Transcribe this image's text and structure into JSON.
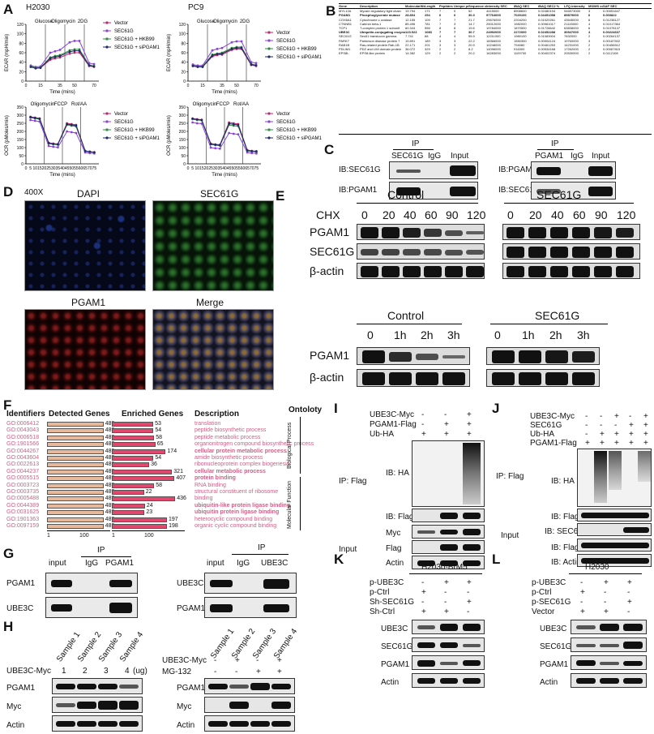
{
  "panel_labels": {
    "A": "A",
    "B": "B",
    "C": "C",
    "D": "D",
    "E": "E",
    "F": "F",
    "G": "G",
    "H": "H",
    "I": "I",
    "J": "J",
    "K": "K",
    "L": "L"
  },
  "panel_a": {
    "ecar_titles": [
      "H2030",
      "PC9"
    ],
    "ecar_ylabel": "ECAR (mpH/min)",
    "ocr_ylabel": "OCR (pMoles/min)",
    "xlabel": "Time (mins)",
    "ecar_injections": [
      "Glucose",
      "Oligomycin",
      "2DG"
    ],
    "ocr_injections": [
      "Oligomycin",
      "FCCP",
      "Rot/AA"
    ],
    "legend": [
      "Vector",
      "SEC61G",
      "SEC61G + HKB99",
      "SEC61G + siPGAM1"
    ],
    "legend_colors": [
      "#c0266d",
      "#8e3fe0",
      "#2e8b3e",
      "#1f2a6b"
    ],
    "ecar_xticks": [
      "0",
      "15",
      "35",
      "50",
      "70"
    ],
    "ecar_yticks": [
      "0",
      "20",
      "40",
      "60",
      "80",
      "100",
      "120"
    ],
    "ocr_xticks": [
      "0",
      "5",
      "10",
      "15",
      "20",
      "25",
      "30",
      "35",
      "40",
      "45",
      "50",
      "55",
      "60",
      "65",
      "70",
      "75"
    ],
    "ocr_yticks": [
      "0",
      "50",
      "100",
      "150",
      "200",
      "250",
      "300",
      "350"
    ]
  },
  "chart_data": [
    {
      "type": "line",
      "title": "H2030",
      "xlabel": "Time (mins)",
      "ylabel": "ECAR (mpH/min)",
      "ylim": [
        0,
        120
      ],
      "x": [
        5,
        10,
        15,
        25,
        30,
        35,
        45,
        50,
        55,
        65,
        70
      ],
      "series": [
        {
          "name": "Vector",
          "values": [
            30,
            27,
            28,
            45,
            48,
            50,
            58,
            60,
            60,
            32,
            30
          ]
        },
        {
          "name": "SEC61G",
          "values": [
            33,
            30,
            31,
            60,
            63,
            66,
            82,
            85,
            85,
            38,
            36
          ]
        },
        {
          "name": "SEC61G + HKB99",
          "values": [
            31,
            28,
            29,
            50,
            53,
            55,
            65,
            67,
            67,
            34,
            32
          ]
        },
        {
          "name": "SEC61G + siPGAM1",
          "values": [
            30,
            27,
            28,
            48,
            51,
            53,
            62,
            64,
            64,
            33,
            31
          ]
        }
      ]
    },
    {
      "type": "line",
      "title": "PC9",
      "xlabel": "Time (mins)",
      "ylabel": "ECAR (mpH/min)",
      "ylim": [
        0,
        120
      ],
      "x": [
        5,
        10,
        15,
        25,
        30,
        35,
        45,
        50,
        55,
        65,
        70
      ],
      "series": [
        {
          "name": "Vector",
          "values": [
            32,
            30,
            30,
            52,
            55,
            56,
            66,
            68,
            68,
            34,
            32
          ]
        },
        {
          "name": "SEC61G",
          "values": [
            35,
            33,
            33,
            65,
            68,
            70,
            82,
            84,
            84,
            40,
            38
          ]
        },
        {
          "name": "SEC61G + HKB99",
          "values": [
            33,
            31,
            31,
            56,
            58,
            60,
            70,
            72,
            72,
            36,
            34
          ]
        },
        {
          "name": "SEC61G + siPGAM1",
          "values": [
            32,
            30,
            30,
            54,
            57,
            58,
            68,
            70,
            70,
            35,
            33
          ]
        }
      ]
    },
    {
      "type": "line",
      "title": "",
      "xlabel": "Time (mins)",
      "ylabel": "OCR (pMoles/min)",
      "ylim": [
        0,
        350
      ],
      "x": [
        5,
        10,
        15,
        25,
        30,
        35,
        45,
        50,
        55,
        65,
        70,
        75
      ],
      "series": [
        {
          "name": "Vector",
          "values": [
            290,
            285,
            280,
            130,
            125,
            122,
            250,
            245,
            240,
            80,
            75,
            72
          ]
        },
        {
          "name": "SEC61G",
          "values": [
            270,
            265,
            260,
            110,
            105,
            102,
            200,
            195,
            190,
            70,
            66,
            64
          ]
        },
        {
          "name": "SEC61G + HKB99",
          "values": [
            285,
            280,
            275,
            125,
            120,
            118,
            240,
            235,
            230,
            78,
            74,
            70
          ]
        },
        {
          "name": "SEC61G + siPGAM1",
          "values": [
            288,
            283,
            278,
            128,
            123,
            120,
            245,
            240,
            236,
            79,
            75,
            71
          ]
        }
      ]
    },
    {
      "type": "line",
      "title": "",
      "xlabel": "Time (mins)",
      "ylabel": "OCR (pMoles/min)",
      "ylim": [
        0,
        350
      ],
      "x": [
        5,
        10,
        15,
        25,
        30,
        35,
        45,
        50,
        55,
        65,
        70,
        75
      ],
      "series": [
        {
          "name": "Vector",
          "values": [
            280,
            275,
            272,
            125,
            120,
            118,
            255,
            250,
            245,
            85,
            80,
            78
          ]
        },
        {
          "name": "SEC61G",
          "values": [
            255,
            250,
            248,
            100,
            96,
            94,
            190,
            185,
            182,
            70,
            66,
            64
          ]
        },
        {
          "name": "SEC61G + HKB99",
          "values": [
            275,
            270,
            268,
            120,
            115,
            112,
            240,
            235,
            232,
            80,
            76,
            74
          ]
        },
        {
          "name": "SEC61G + siPGAM1",
          "values": [
            278,
            273,
            270,
            122,
            118,
            115,
            248,
            243,
            240,
            82,
            78,
            76
          ]
        }
      ]
    },
    {
      "type": "bar",
      "title": "",
      "xlabel": "",
      "ylabel": "",
      "categories": [
        "GO:0006412",
        "GO:0043043",
        "GO:0006518",
        "GO:1901566",
        "GO:0044267",
        "GO:0043604",
        "GO:0022613",
        "GO:0044237",
        "GO:0005515",
        "GO:0003723",
        "GO:0003735",
        "GO:0005488",
        "GO:0044389",
        "GO:0031625",
        "GO:1901363",
        "GO:0097159"
      ],
      "series": [
        {
          "name": "Detected Genes",
          "values": [
            489,
            489,
            489,
            489,
            489,
            489,
            489,
            489,
            489,
            489,
            489,
            489,
            489,
            489,
            489,
            489
          ]
        },
        {
          "name": "Enriched Genes",
          "values": [
            53,
            54,
            58,
            65,
            174,
            54,
            36,
            321,
            407,
            58,
            22,
            436,
            24,
            23,
            197,
            198
          ]
        }
      ],
      "descriptions": [
        "translation",
        "peptide biosynthetic process",
        "peptide metabolic process",
        "organonitrogen compound biosynthetic process",
        "cellular protein metabolic process",
        "amide biosynthetic process",
        "ribonucleoprotein complex biogenesis",
        "cellular metabolic process",
        "protein binding",
        "RNA binding",
        "structural constituent of ribosome",
        "binding",
        "ubiquitin-like protein ligase binding",
        "ubiquitin protein ligase binding",
        "heterocyclic compound binding",
        "organic cyclic compound binding"
      ],
      "bold_rows": [
        4,
        7,
        8,
        12,
        13
      ],
      "xticks": [
        "1",
        "100"
      ]
    }
  ],
  "panel_b": {
    "headers": [
      "Gene",
      "Description",
      "MolecularWeight",
      "Length",
      "Peptides SE",
      "Unique pep",
      "Sequence coverage",
      "Intensity SEC",
      "iBAQ SEC",
      "iBAQ SEC2 %",
      "LFQ intensity",
      "MS/MS count",
      "SAF SEC"
    ],
    "rows": [
      [
        "MYL12A",
        "Myosin regulatory light chain",
        "19.794",
        "171",
        "7",
        "0",
        "52",
        "4415000",
        "8908600",
        "0.02480194",
        "946573000",
        "3",
        "0.00051647"
      ],
      [
        "PGAM1",
        "Phosphoglycerate mutase",
        "28.804",
        "254",
        "6",
        "6",
        "30.3",
        "97764000",
        "7020100",
        "0.04451058",
        "89879000",
        "6",
        "0.003822"
      ],
      [
        "COX6A1",
        "Cytochrome c oxidase",
        "12.155",
        "109",
        "7",
        "7",
        "21.7",
        "29676000",
        "2204200",
        "0.01020261",
        "43545000",
        "6",
        "0.01238127"
      ],
      [
        "CTNNB1",
        "Catenin beta-1",
        "85.496",
        "781",
        "7",
        "3",
        "14.7",
        "25012000",
        "1982000",
        "0.00961017",
        "21145000",
        "4",
        "0.01017364"
      ],
      [
        "TCP1",
        "T-complex protein 1 subunit",
        "60.344",
        "556",
        "8",
        "8",
        "19.6",
        "19784000",
        "1870500",
        "0.01728642",
        "63838000",
        "6",
        "0.01078137"
      ],
      [
        "UBE3C",
        "Ubiquitin-conjugating enzyme",
        "123.923",
        "1083",
        "7",
        "7",
        "30.7",
        "24992000",
        "2272000",
        "0.02452288",
        "30547000",
        "4",
        "0.00224637"
      ],
      [
        "SEC61G",
        "Sec61 translocon gamma",
        "7.741",
        "68",
        "4",
        "4",
        "55.9",
        "12211000",
        "1980100",
        "0.01083004",
        "7832000",
        "2",
        "0.00264137"
      ],
      [
        "PARK7",
        "Parkinson disease protein 7",
        "19.891",
        "189",
        "3",
        "3",
        "22.2",
        "18366000",
        "1550300",
        "0.00904124",
        "19760000",
        "3",
        "0.00187502"
      ],
      [
        "RAB1B",
        "Ras-related protein Rab-1B",
        "22.171",
        "201",
        "3",
        "3",
        "20.9",
        "10248000",
        "794080",
        "0.00461253",
        "14231000",
        "2",
        "0.00456512"
      ],
      [
        "PDLIM1",
        "PDZ and LIM domain protein",
        "36.072",
        "329",
        "2",
        "2",
        "8.2",
        "14096000",
        "916300",
        "0.00534168",
        "17262000",
        "2",
        "0.00067815"
      ],
      [
        "EPS8L",
        "EPS8-like protein",
        "14.382",
        "129",
        "2",
        "2",
        "20.2",
        "16283000",
        "1109700",
        "0.00402374",
        "20530000",
        "2",
        "0.0112108"
      ]
    ]
  },
  "panel_c": {
    "left": {
      "header": "IP",
      "lanes": [
        "SEC61G",
        "IgG",
        "Input"
      ],
      "rows": [
        "IB:SEC61G",
        "IB:PGAM1"
      ]
    },
    "right": {
      "header": "IP",
      "lanes": [
        "PGAM1",
        "IgG",
        "Input"
      ],
      "rows": [
        "IB:PGAM1",
        "IB:SEC61G"
      ]
    }
  },
  "panel_d": {
    "magnification": "400X",
    "titles": [
      "DAPI",
      "SEC61G",
      "PGAM1",
      "Merge"
    ]
  },
  "panel_e": {
    "top": {
      "groups": [
        "Control",
        "SEC61G"
      ],
      "cond_label": "CHX",
      "times": [
        "0",
        "20",
        "40",
        "60",
        "90",
        "120",
        "0",
        "20",
        "40",
        "60",
        "90",
        "120"
      ],
      "rows": [
        "PGAM1",
        "SEC61G",
        "β-actin"
      ]
    },
    "bottom": {
      "groups": [
        "Control",
        "SEC61G"
      ],
      "times": [
        "0",
        "1h",
        "2h",
        "3h",
        "0",
        "1h",
        "2h",
        "3h"
      ],
      "rows": [
        "PGAM1",
        "β-actin"
      ]
    }
  },
  "panel_f": {
    "headers": [
      "Identifiers",
      "Detected Genes",
      "Enriched Genes",
      "Description",
      "Ontoloty"
    ],
    "ontology_groups": [
      "Biological Process",
      "Molecular Function"
    ]
  },
  "panel_g": {
    "left": {
      "header": "IP",
      "lanes": [
        "input",
        "IgG",
        "PGAM1"
      ],
      "rows": [
        "PGAM1",
        "UBE3C"
      ]
    },
    "right": {
      "header": "IP",
      "lanes": [
        "input",
        "IgG",
        "UBE3C"
      ],
      "rows": [
        "UBE3C",
        "PGAM1"
      ]
    }
  },
  "panel_h": {
    "left": {
      "samples": [
        "Sample 1",
        "Sample 2",
        "Sample 3",
        "Sample 4"
      ],
      "cond_label": "UBE3C-Myc",
      "doses": [
        "1",
        "2",
        "3",
        "4"
      ],
      "unit": "(ug)",
      "rows": [
        "PGAM1",
        "Myc",
        "Actin"
      ]
    },
    "right": {
      "samples": [
        "Sample 1",
        "Sample 2",
        "Sample 3",
        "Sample 4"
      ],
      "conds": [
        "UBE3C-Myc",
        "MG-132"
      ],
      "signs": [
        [
          "-",
          "+",
          "-",
          "+"
        ],
        [
          "-",
          "-",
          "+",
          "+"
        ]
      ],
      "rows": [
        "PGAM1",
        "Myc",
        "Actin"
      ]
    }
  },
  "panel_i": {
    "conds": [
      "UBE3C-Myc",
      "PGAM1-Flag",
      "Ub-HA"
    ],
    "signs": [
      [
        "-",
        "-",
        "+"
      ],
      [
        "-",
        "+",
        "+"
      ],
      [
        "+",
        "+",
        "+"
      ]
    ],
    "ip_label": "IP: Flag",
    "input_label": "Input",
    "ip_rows": [
      "IB: HA",
      "IB: Flag"
    ],
    "input_rows": [
      "Myc",
      "Flag",
      "Actin"
    ]
  },
  "panel_j": {
    "conds": [
      "UBE3C-Myc",
      "SEC61G",
      "Ub-HA",
      "PGAM1-Flag"
    ],
    "signs": [
      [
        "-",
        "-",
        "+",
        "-",
        "+"
      ],
      [
        "-",
        "-",
        "-",
        "+",
        "+"
      ],
      [
        "-",
        "+",
        "+",
        "+",
        "+"
      ],
      [
        "+",
        "+",
        "+",
        "+",
        "+"
      ]
    ],
    "ip_label": "IP: Flag",
    "input_label": "Input",
    "ip_rows": [
      "IB: HA",
      "IB: Flag"
    ],
    "input_rows": [
      "IB: SEC61G",
      "IB: Flag",
      "IB: Actin"
    ]
  },
  "panel_k": {
    "title": "H2030-BrM5",
    "conds": [
      "p-UBE3C",
      "p-Ctrl",
      "Sh-SEC61G",
      "Sh-Ctrl"
    ],
    "signs": [
      [
        "-",
        "+",
        "+"
      ],
      [
        "+",
        "-",
        "-"
      ],
      [
        "-",
        "-",
        "+"
      ],
      [
        "+",
        "+",
        "-"
      ]
    ],
    "rows": [
      "UBE3C",
      "SEC61G",
      "PGAM1",
      "Actin"
    ]
  },
  "panel_l": {
    "title": "H2030",
    "conds": [
      "p-UBE3C",
      "p-Ctrl",
      "p-SEC61G",
      "Vector"
    ],
    "signs": [
      [
        "-",
        "+",
        "+"
      ],
      [
        "+",
        "-",
        "-"
      ],
      [
        "-",
        "-",
        "+"
      ],
      [
        "+",
        "+",
        "-"
      ]
    ],
    "rows": [
      "UBE3C",
      "SEC61G",
      "PGAM1",
      "Actin"
    ]
  }
}
